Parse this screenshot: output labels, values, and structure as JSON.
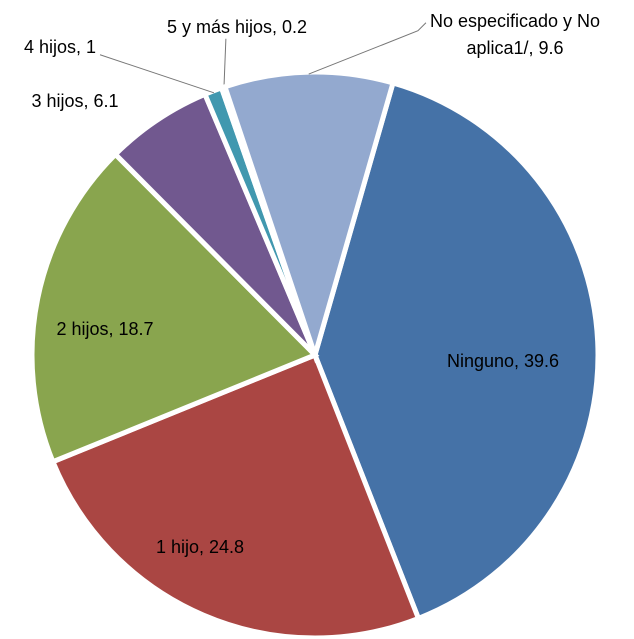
{
  "chart_data": {
    "type": "pie",
    "categories": [
      "Ninguno",
      "1 hijo",
      "2 hijos",
      "3 hijos",
      "4 hijos",
      "5 y más hijos",
      "No especificado y No aplica1/"
    ],
    "values": [
      39.6,
      24.8,
      18.7,
      6.1,
      1,
      0.2,
      9.6
    ],
    "value_labels": [
      "Ninguno, 39.6",
      "1 hijo, 24.8",
      "2 hijos, 18.7",
      "3 hijos, 6.1",
      "4 hijos, 1",
      "5 y más hijos, 0.2",
      "No especificado y No aplica1/, 9.6"
    ],
    "colors": [
      "#4572a7",
      "#aa4643",
      "#89a54e",
      "#71588f",
      "#4198af",
      "#db843d",
      "#93a9cf"
    ]
  }
}
